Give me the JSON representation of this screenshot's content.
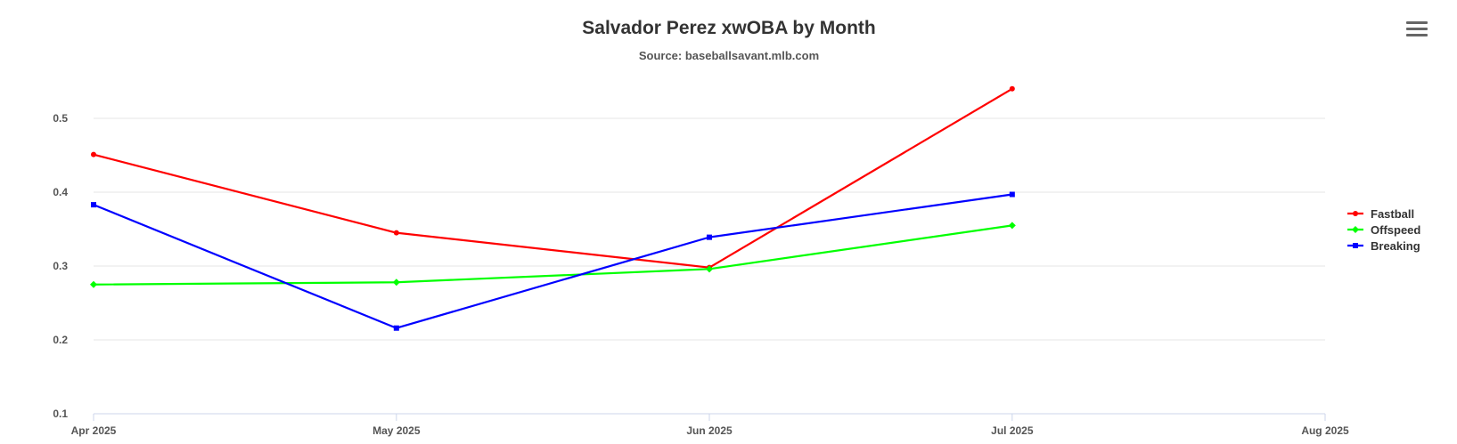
{
  "colors": {
    "fastball": "#ff0000",
    "offspeed": "#00ff00",
    "breaking": "#0000ff",
    "grid": "#e6e6e6",
    "axis": "#ccd6eb"
  },
  "menu": {
    "icon": "hamburger-menu-icon"
  },
  "chart_data": {
    "type": "line",
    "title": "Salvador Perez xwOBA by Month",
    "subtitle": "Source: baseballsavant.mlb.com",
    "xlabel": "",
    "ylabel": "",
    "x_ticks": [
      "Apr 2025",
      "May 2025",
      "Jun 2025",
      "Jul 2025",
      "Aug 2025"
    ],
    "x_range": [
      "2025-04-01",
      "2025-08-01"
    ],
    "ylim": [
      0.1,
      0.5
    ],
    "y_ticks": [
      "0.1",
      "0.2",
      "0.3",
      "0.4",
      "0.5"
    ],
    "grid": true,
    "legend_position": "right",
    "x": [
      "2025-04-01",
      "2025-05-01",
      "2025-06-01",
      "2025-07-01"
    ],
    "series": [
      {
        "name": "Fastball",
        "color": "#ff0000",
        "marker": "circle",
        "values": [
          0.451,
          0.345,
          0.298,
          0.54
        ]
      },
      {
        "name": "Offspeed",
        "color": "#00ff00",
        "marker": "diamond",
        "values": [
          0.275,
          0.278,
          0.296,
          0.355
        ]
      },
      {
        "name": "Breaking",
        "color": "#0000ff",
        "marker": "square",
        "values": [
          0.383,
          0.216,
          0.339,
          0.397
        ]
      }
    ]
  }
}
